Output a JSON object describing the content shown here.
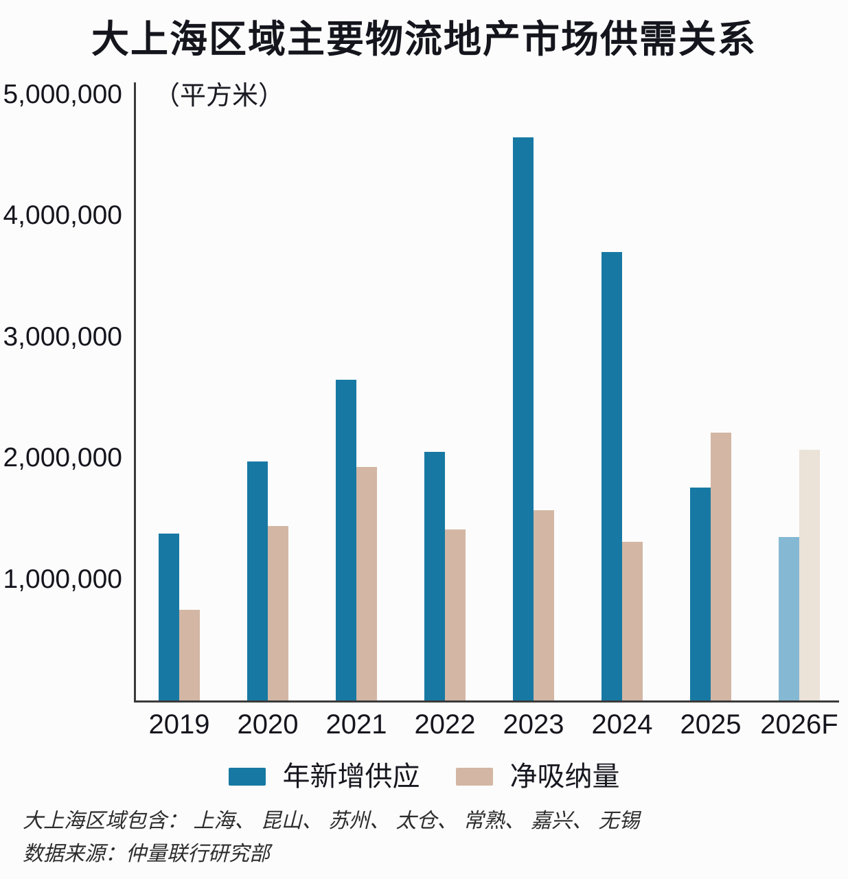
{
  "chart_data": {
    "type": "bar",
    "title": "大上海区域主要物流地产市场供需关系",
    "unit": "（平方米）",
    "categories": [
      "2019",
      "2020",
      "2021",
      "2022",
      "2023",
      "2024",
      "2025",
      "2026F"
    ],
    "series": [
      {
        "name": "年新增供应",
        "color": "#1779a3",
        "forecast_color": "#85b9d3",
        "values": [
          1380000,
          1970000,
          2650000,
          2050000,
          4650000,
          3700000,
          1760000,
          1350000
        ]
      },
      {
        "name": "净吸纳量",
        "color": "#d3b6a4",
        "forecast_color": "#ebe2d8",
        "values": [
          750000,
          1440000,
          1930000,
          1410000,
          1570000,
          1310000,
          2210000,
          2070000
        ]
      }
    ],
    "ylim": [
      0,
      5000000
    ],
    "yticks": [
      1000000,
      2000000,
      3000000,
      4000000,
      5000000
    ],
    "ytick_format": "thousands-comma",
    "grid": false,
    "legend_position": "bottom",
    "forecast_category": "2026F",
    "xlabel": "",
    "ylabel": "（平方米）"
  },
  "footer": {
    "line1": "大上海区域包含： 上海、 昆山、 苏州、 太仓、 常熟、 嘉兴、 无锡",
    "line2": "数据来源：仲量联行研究部"
  }
}
